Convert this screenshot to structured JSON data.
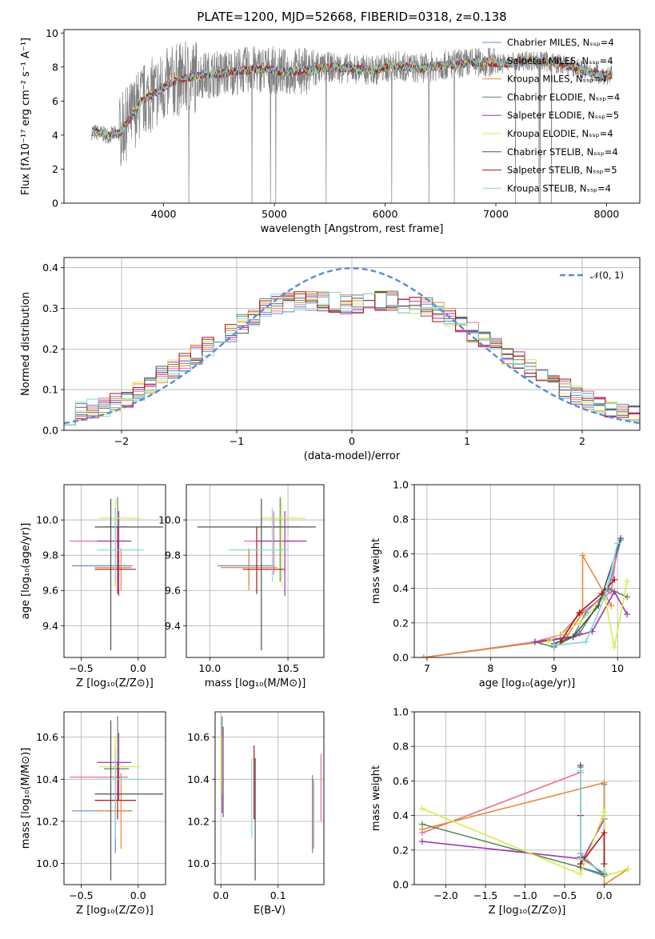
{
  "title": "PLATE=1200, MJD=52668, FIBERID=0318, z=0.138",
  "colors": {
    "data_gray": "#808080",
    "chabrier_miles": "#5b8bd6",
    "salpeter_miles": "#e86f8c",
    "kroupa_miles": "#e58a35",
    "chabrier_elodie": "#5b8b5b",
    "salpeter_elodie": "#a033b0",
    "kroupa_elodie": "#d8ea4a",
    "chabrier_stelib": "#505050",
    "salpeter_stelib": "#b01515",
    "kroupa_stelib": "#7fd8dc",
    "gaussian": "#5b8bd6"
  },
  "chart_data": [
    {
      "id": "spectrum",
      "type": "line",
      "xlabel": "wavelength [Angstrom, rest frame]",
      "ylabel": "Flux [fλ10⁻¹⁷ erg cm⁻² s⁻¹ A⁻¹]",
      "xlim": [
        3100,
        8300
      ],
      "ylim": [
        0,
        10.2
      ],
      "xticks": [
        "4000",
        "5000",
        "6000",
        "7000",
        "8000"
      ],
      "yticks": [
        "0",
        "2",
        "4",
        "6",
        "8",
        "10"
      ],
      "grid": false,
      "legend": "top-right",
      "legend_entries": [
        "Chabrier MILES, Nₛₛₚ=4",
        "Salpeter MILES, Nₛₛₚ=4",
        "Kroupa MILES, Nₛₛₚ=4",
        "Chabrier ELODIE, Nₛₛₚ=4",
        "Salpeter ELODIE, Nₛₛₚ=5",
        "Kroupa ELODIE, Nₛₛₚ=4",
        "Chabrier STELIB, Nₛₛₚ=4",
        "Salpeter STELIB, Nₛₛₚ=5",
        "Kroupa STELIB, Nₛₛₚ=4"
      ],
      "continuum": {
        "x": [
          3350,
          3500,
          3600,
          3700,
          3800,
          3900,
          4000,
          4100,
          4300,
          4500,
          4700,
          4900,
          5100,
          5300,
          5500,
          5700,
          5900,
          6100,
          6300,
          6500,
          6700,
          6900,
          7100,
          7300,
          7500,
          7700,
          7900,
          8050
        ],
        "y": [
          4.2,
          4.0,
          4.1,
          5.0,
          6.0,
          6.4,
          6.8,
          7.2,
          7.5,
          7.6,
          7.8,
          7.9,
          7.7,
          7.8,
          8.0,
          7.9,
          7.8,
          8.1,
          7.9,
          8.1,
          8.2,
          8.3,
          8.2,
          8.4,
          8.3,
          8.0,
          7.6,
          7.5
        ]
      }
    },
    {
      "id": "residuals",
      "type": "histogram",
      "xlabel": "(data-model)/error",
      "ylabel": "Normed distribution",
      "xlim": [
        -2.5,
        2.5
      ],
      "ylim": [
        0,
        0.425
      ],
      "xticks": [
        "−2",
        "−1",
        "0",
        "1",
        "2"
      ],
      "yticks": [
        "0.0",
        "0.1",
        "0.2",
        "0.3",
        "0.4"
      ],
      "grid": true,
      "legend": "top-right",
      "legend_entries": [
        "𝒩(0, 1)"
      ],
      "bin_width": 0.1,
      "envelope": {
        "x": [
          -2.5,
          -2.0,
          -1.5,
          -1.0,
          -0.7,
          -0.3,
          0.0,
          0.3,
          0.7,
          1.0,
          1.5,
          2.0,
          2.5
        ],
        "y": [
          0.035,
          0.07,
          0.16,
          0.25,
          0.31,
          0.32,
          0.31,
          0.32,
          0.3,
          0.25,
          0.16,
          0.08,
          0.035
        ]
      }
    },
    {
      "id": "age_vs_Z",
      "type": "errorbar",
      "xlabel": "Z [log₁₀(Z/Z⊙)]",
      "ylabel": "age  [log₁₀(age/yr)]",
      "xlim": [
        -0.65,
        0.24
      ],
      "ylim": [
        9.22,
        10.2
      ],
      "xticks": [
        "−0.5",
        "0.0"
      ],
      "yticks": [
        "9.4",
        "9.6",
        "9.8",
        "10.0"
      ],
      "grid": true,
      "points": [
        {
          "x": -0.2,
          "xlo": -0.58,
          "xhi": -0.05,
          "y": 9.74,
          "ylo": 9.63,
          "yhi": 9.83
        },
        {
          "x": -0.2,
          "xlo": -0.6,
          "xhi": -0.09,
          "y": 9.88,
          "ylo": 9.69,
          "yhi": 10.05
        },
        {
          "x": -0.15,
          "xlo": -0.38,
          "xhi": -0.06,
          "y": 9.73,
          "ylo": 9.6,
          "yhi": 9.84
        },
        {
          "x": -0.18,
          "xlo": -0.3,
          "xhi": -0.08,
          "y": 9.96,
          "ylo": 9.65,
          "yhi": 10.13
        },
        {
          "x": -0.17,
          "xlo": -0.36,
          "xhi": -0.06,
          "y": 9.88,
          "ylo": 9.57,
          "yhi": 10.05
        },
        {
          "x": -0.2,
          "xlo": -0.34,
          "xhi": 0.02,
          "y": 10.01,
          "ylo": 9.62,
          "yhi": 10.12
        },
        {
          "x": -0.24,
          "xlo": -0.38,
          "xhi": 0.22,
          "y": 9.96,
          "ylo": 9.26,
          "yhi": 10.12
        },
        {
          "x": -0.18,
          "xlo": -0.38,
          "xhi": -0.02,
          "y": 9.72,
          "ylo": 9.58,
          "yhi": 9.96
        },
        {
          "x": -0.2,
          "xlo": -0.36,
          "xhi": 0.05,
          "y": 9.83,
          "ylo": 9.65,
          "yhi": 10.07
        }
      ]
    },
    {
      "id": "age_vs_mass",
      "type": "errorbar",
      "xlabel": "mass [log₁₀(M/M⊙)]",
      "ylabel": "",
      "xlim": [
        9.85,
        10.73
      ],
      "ylim": [
        9.22,
        10.2
      ],
      "xticks": [
        "10.0",
        "10.5"
      ],
      "yticks": [
        "9.4",
        "9.6",
        "9.8",
        "10.0"
      ],
      "grid": true,
      "points": [
        {
          "x": 10.25,
          "xlo": 10.05,
          "xhi": 10.41,
          "y": 9.74,
          "ylo": 9.63,
          "yhi": 9.83
        },
        {
          "x": 10.41,
          "xlo": 10.22,
          "xhi": 10.55,
          "y": 9.88,
          "ylo": 9.69,
          "yhi": 10.05
        },
        {
          "x": 10.25,
          "xlo": 10.07,
          "xhi": 10.43,
          "y": 9.73,
          "ylo": 9.6,
          "yhi": 9.84
        },
        {
          "x": 10.45,
          "xlo": 10.3,
          "xhi": 10.58,
          "y": 9.96,
          "ylo": 9.65,
          "yhi": 10.13
        },
        {
          "x": 10.48,
          "xlo": 10.3,
          "xhi": 10.62,
          "y": 9.88,
          "ylo": 9.57,
          "yhi": 10.05
        },
        {
          "x": 10.46,
          "xlo": 10.33,
          "xhi": 10.61,
          "y": 10.01,
          "ylo": 9.62,
          "yhi": 10.12
        },
        {
          "x": 10.33,
          "xlo": 9.92,
          "xhi": 10.68,
          "y": 9.96,
          "ylo": 9.26,
          "yhi": 10.12
        },
        {
          "x": 10.3,
          "xlo": 10.21,
          "xhi": 10.48,
          "y": 9.72,
          "ylo": 9.58,
          "yhi": 9.96
        },
        {
          "x": 10.4,
          "xlo": 10.12,
          "xhi": 10.5,
          "y": 9.83,
          "ylo": 9.65,
          "yhi": 10.07
        }
      ]
    },
    {
      "id": "weight_vs_age",
      "type": "line",
      "xlabel": "age  [log₁₀(age/yr)]",
      "ylabel": "mass weight",
      "xlim": [
        6.8,
        10.35
      ],
      "ylim": [
        0,
        1.0
      ],
      "xticks": [
        "7",
        "8",
        "9",
        "10"
      ],
      "yticks": [
        "0.0",
        "0.2",
        "0.4",
        "0.6",
        "0.8",
        "1.0"
      ],
      "grid": true,
      "series": [
        {
          "color_key": "chabrier_miles",
          "x": [
            6.95,
            8.8,
            9.3,
            9.5,
            9.85,
            10.05
          ],
          "y": [
            0.0,
            0.09,
            0.12,
            0.26,
            0.39,
            0.68
          ]
        },
        {
          "color_key": "salpeter_miles",
          "x": [
            6.95,
            8.7,
            9.1,
            9.4,
            9.9,
            10.0
          ],
          "y": [
            0.0,
            0.09,
            0.13,
            0.25,
            0.38,
            0.66
          ]
        },
        {
          "color_key": "kroupa_miles",
          "x": [
            6.95,
            8.8,
            9.2,
            9.45,
            9.45,
            9.9
          ],
          "y": [
            0.0,
            0.09,
            0.12,
            0.26,
            0.59,
            0.3
          ]
        },
        {
          "color_key": "chabrier_elodie",
          "x": [
            8.7,
            9.0,
            9.4,
            9.85,
            10.15
          ],
          "y": [
            0.09,
            0.06,
            0.14,
            0.4,
            0.35
          ]
        },
        {
          "color_key": "salpeter_elodie",
          "x": [
            8.7,
            9.3,
            9.6,
            9.95,
            10.15
          ],
          "y": [
            0.09,
            0.12,
            0.15,
            0.38,
            0.25
          ]
        },
        {
          "color_key": "kroupa_elodie",
          "x": [
            8.9,
            9.4,
            9.8,
            9.95,
            10.15
          ],
          "y": [
            0.09,
            0.2,
            0.35,
            0.06,
            0.44
          ]
        },
        {
          "color_key": "chabrier_stelib",
          "x": [
            9.0,
            9.3,
            9.7,
            10.05
          ],
          "y": [
            0.08,
            0.12,
            0.3,
            0.69
          ]
        },
        {
          "color_key": "salpeter_stelib",
          "x": [
            9.1,
            9.4,
            9.75,
            9.95
          ],
          "y": [
            0.09,
            0.26,
            0.37,
            0.45
          ]
        },
        {
          "color_key": "kroupa_stelib",
          "x": [
            9.0,
            9.5,
            9.8,
            10.0
          ],
          "y": [
            0.07,
            0.09,
            0.35,
            0.66
          ]
        }
      ]
    },
    {
      "id": "mass_vs_Z",
      "type": "errorbar",
      "xlabel": "Z [log₁₀(Z/Z⊙)]",
      "ylabel": "mass [log₁₀(M/M⊙)]",
      "xlim": [
        -0.65,
        0.24
      ],
      "ylim": [
        9.9,
        10.72
      ],
      "xticks": [
        "−0.5",
        "0.0"
      ],
      "yticks": [
        "10.0",
        "10.2",
        "10.4",
        "10.6"
      ],
      "grid": true,
      "points": [
        {
          "x": -0.2,
          "xlo": -0.58,
          "xhi": -0.05,
          "y": 10.25,
          "ylo": 10.05,
          "yhi": 10.41
        },
        {
          "x": -0.2,
          "xlo": -0.6,
          "xhi": -0.09,
          "y": 10.41,
          "ylo": 10.22,
          "yhi": 10.55
        },
        {
          "x": -0.15,
          "xlo": -0.38,
          "xhi": -0.06,
          "y": 10.25,
          "ylo": 10.07,
          "yhi": 10.43
        },
        {
          "x": -0.18,
          "xlo": -0.3,
          "xhi": -0.08,
          "y": 10.45,
          "ylo": 10.3,
          "yhi": 10.7
        },
        {
          "x": -0.17,
          "xlo": -0.36,
          "xhi": -0.06,
          "y": 10.48,
          "ylo": 10.3,
          "yhi": 10.62
        },
        {
          "x": -0.2,
          "xlo": -0.34,
          "xhi": 0.02,
          "y": 10.46,
          "ylo": 10.33,
          "yhi": 10.61
        },
        {
          "x": -0.24,
          "xlo": -0.38,
          "xhi": 0.22,
          "y": 10.33,
          "ylo": 9.92,
          "yhi": 10.68
        },
        {
          "x": -0.18,
          "xlo": -0.38,
          "xhi": -0.02,
          "y": 10.3,
          "ylo": 10.21,
          "yhi": 10.48
        },
        {
          "x": -0.2,
          "xlo": -0.36,
          "xhi": 0.05,
          "y": 10.4,
          "ylo": 10.12,
          "yhi": 10.5
        }
      ]
    },
    {
      "id": "mass_vs_ebv",
      "type": "errorbar",
      "xlabel": "E(B-V)",
      "ylabel": "",
      "xlim": [
        -0.01,
        0.18
      ],
      "ylim": [
        9.9,
        10.72
      ],
      "xticks": [
        "0.0",
        "0.1"
      ],
      "yticks": [
        "10.0",
        "10.2",
        "10.4",
        "10.6"
      ],
      "grid": true,
      "points": [
        {
          "x": 0.16,
          "xlo": 0.16,
          "xhi": 0.16,
          "y": 10.25,
          "ylo": 10.05,
          "yhi": 10.42
        },
        {
          "x": 0.175,
          "xlo": 0.175,
          "xhi": 0.175,
          "y": 10.35,
          "ylo": 10.2,
          "yhi": 10.52
        },
        {
          "x": 0.162,
          "xlo": 0.162,
          "xhi": 0.162,
          "y": 10.25,
          "ylo": 10.07,
          "yhi": 10.4
        },
        {
          "x": 0.002,
          "xlo": 0.002,
          "xhi": 0.002,
          "y": 10.45,
          "ylo": 10.24,
          "yhi": 10.7
        },
        {
          "x": 0.004,
          "xlo": 0.004,
          "xhi": 0.004,
          "y": 10.48,
          "ylo": 10.22,
          "yhi": 10.65
        },
        {
          "x": 0.001,
          "xlo": 0.001,
          "xhi": 0.001,
          "y": 10.46,
          "ylo": 10.33,
          "yhi": 10.61
        },
        {
          "x": 0.06,
          "xlo": 0.06,
          "xhi": 0.06,
          "y": 10.33,
          "ylo": 9.92,
          "yhi": 10.5
        },
        {
          "x": 0.058,
          "xlo": 0.058,
          "xhi": 0.058,
          "y": 10.4,
          "ylo": 10.21,
          "yhi": 10.56
        },
        {
          "x": 0.054,
          "xlo": 0.054,
          "xhi": 0.054,
          "y": 10.3,
          "ylo": 10.12,
          "yhi": 10.5
        }
      ]
    },
    {
      "id": "weight_vs_Z",
      "type": "line",
      "xlabel": "Z [log₁₀(Z/Z⊙)]",
      "ylabel": "mass weight",
      "xlim": [
        -2.4,
        0.45
      ],
      "ylim": [
        0,
        1.0
      ],
      "xticks": [
        "−2.0",
        "−1.5",
        "−1.0",
        "−0.5",
        "0.0"
      ],
      "yticks": [
        "0.0",
        "0.2",
        "0.4",
        "0.6",
        "0.8",
        "1.0"
      ],
      "grid": true,
      "series": [
        {
          "color_key": "chabrier_miles",
          "x": [
            -0.3,
            -0.3,
            0.0,
            0.0
          ],
          "y": [
            0.68,
            0.1,
            0.05,
            0.58
          ]
        },
        {
          "color_key": "salpeter_miles",
          "x": [
            -2.3,
            -0.3,
            -0.3,
            0.0
          ],
          "y": [
            0.3,
            0.65,
            0.18,
            0.05
          ]
        },
        {
          "color_key": "kroupa_miles",
          "x": [
            -2.3,
            0.0,
            0.0,
            0.3
          ],
          "y": [
            0.32,
            0.59,
            0.0,
            0.09
          ]
        },
        {
          "color_key": "chabrier_elodie",
          "x": [
            -2.3,
            -0.3,
            0.0
          ],
          "y": [
            0.35,
            0.1,
            0.06
          ]
        },
        {
          "color_key": "salpeter_elodie",
          "x": [
            -2.3,
            -0.3,
            -0.3,
            0.0,
            0.0
          ],
          "y": [
            0.25,
            0.15,
            0.12,
            0.38,
            0.05
          ]
        },
        {
          "color_key": "kroupa_elodie",
          "x": [
            -2.3,
            -0.3,
            0.0,
            0.0,
            0.3
          ],
          "y": [
            0.44,
            0.06,
            0.42,
            0.05,
            0.09
          ]
        },
        {
          "color_key": "chabrier_stelib",
          "x": [
            -0.3,
            -0.3,
            0.0
          ],
          "y": [
            0.69,
            0.16,
            0.06
          ]
        },
        {
          "color_key": "salpeter_stelib",
          "x": [
            -0.3,
            -0.3,
            0.0,
            0.0
          ],
          "y": [
            0.4,
            0.12,
            0.3,
            0.12
          ]
        },
        {
          "color_key": "kroupa_stelib",
          "x": [
            -0.3,
            -0.3,
            0.0
          ],
          "y": [
            0.66,
            0.15,
            0.07
          ]
        }
      ]
    }
  ]
}
